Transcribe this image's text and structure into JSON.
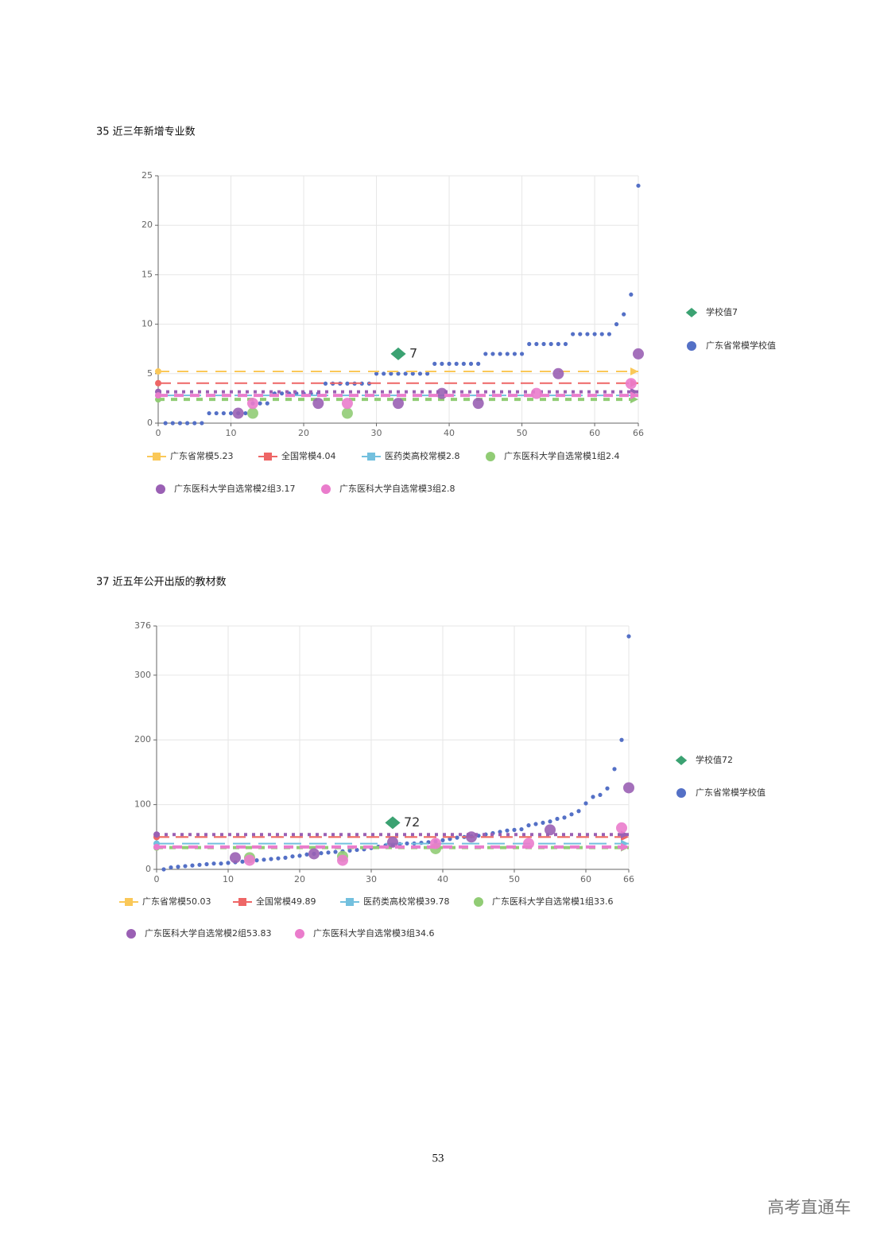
{
  "chart_data": [
    {
      "type": "scatter",
      "title": "35 近三年新增专业数",
      "xlim": [
        0,
        66
      ],
      "xticks": [
        0,
        10,
        20,
        30,
        40,
        50,
        60,
        66
      ],
      "ylim": [
        0,
        25
      ],
      "yticks": [
        0,
        5,
        10,
        15,
        20,
        25
      ],
      "grid": true,
      "series": [
        {
          "name": "学校值7",
          "color": "#3ba272",
          "marker": "diamond",
          "x": [
            33
          ],
          "values": [
            7
          ]
        },
        {
          "name": "广东省常模学校值",
          "color": "#5470c6",
          "marker": "circle",
          "x": [
            1,
            2,
            3,
            4,
            5,
            6,
            7,
            8,
            9,
            10,
            11,
            12,
            13,
            14,
            15,
            16,
            17,
            18,
            19,
            20,
            21,
            22,
            23,
            24,
            25,
            26,
            27,
            28,
            29,
            30,
            31,
            32,
            33,
            34,
            35,
            36,
            37,
            38,
            39,
            40,
            41,
            42,
            43,
            44,
            45,
            46,
            47,
            48,
            49,
            50,
            51,
            52,
            53,
            54,
            55,
            56,
            57,
            58,
            59,
            60,
            61,
            62,
            63,
            64,
            65,
            66
          ],
          "values": [
            0,
            0,
            0,
            0,
            0,
            0,
            1,
            1,
            1,
            1,
            1,
            1,
            2,
            2,
            2,
            3,
            3,
            3,
            3,
            3,
            3,
            3,
            4,
            4,
            4,
            4,
            4,
            4,
            4,
            5,
            5,
            5,
            5,
            5,
            5,
            5,
            5,
            6,
            6,
            6,
            6,
            6,
            6,
            6,
            7,
            7,
            7,
            7,
            7,
            7,
            8,
            8,
            8,
            8,
            8,
            8,
            9,
            9,
            9,
            9,
            9,
            9,
            10,
            11,
            13,
            24
          ]
        },
        {
          "name": "广东省常模5.23",
          "color": "#fac858",
          "value": 5.23
        },
        {
          "name": "全国常模4.04",
          "color": "#ee6666",
          "value": 4.04
        },
        {
          "name": "医药类高校常模2.8",
          "color": "#73c0de",
          "value": 2.8
        },
        {
          "name": "广东医科大学自选常模1组2.4",
          "color": "#91cc75",
          "value": 2.4,
          "x": [
            13,
            26
          ],
          "values": [
            1,
            1
          ]
        },
        {
          "name": "广东医科大学自选常模2组3.17",
          "color": "#9a60b4",
          "value": 3.17,
          "x": [
            11,
            22,
            33,
            39,
            44,
            55,
            66
          ],
          "values": [
            1,
            2,
            2,
            3,
            2,
            5,
            7
          ]
        },
        {
          "name": "广东医科大学自选常模3组2.8",
          "color": "#ea7ccc",
          "value": 2.8,
          "x": [
            13,
            26,
            52,
            65
          ],
          "values": [
            2,
            2,
            3,
            4
          ]
        }
      ]
    },
    {
      "type": "scatter",
      "title": "37 近五年公开出版的教材数",
      "xlim": [
        0,
        66
      ],
      "xticks": [
        0,
        10,
        20,
        30,
        40,
        50,
        60,
        66
      ],
      "ylim": [
        0,
        376
      ],
      "yticks": [
        0,
        100,
        200,
        300,
        376
      ],
      "grid": true,
      "series": [
        {
          "name": "学校值72",
          "color": "#3ba272",
          "marker": "diamond",
          "x": [
            33
          ],
          "values": [
            72
          ]
        },
        {
          "name": "广东省常模学校值",
          "color": "#5470c6",
          "marker": "circle",
          "x": [
            1,
            2,
            3,
            4,
            5,
            6,
            7,
            8,
            9,
            10,
            11,
            12,
            13,
            14,
            15,
            16,
            17,
            18,
            19,
            20,
            21,
            22,
            23,
            24,
            25,
            26,
            27,
            28,
            29,
            30,
            31,
            32,
            33,
            34,
            35,
            36,
            37,
            38,
            39,
            40,
            41,
            42,
            43,
            44,
            45,
            46,
            47,
            48,
            49,
            50,
            51,
            52,
            53,
            54,
            55,
            56,
            57,
            58,
            59,
            60,
            61,
            62,
            63,
            64,
            65,
            66
          ],
          "values": [
            0,
            3,
            4,
            5,
            6,
            7,
            8,
            9,
            9,
            10,
            11,
            12,
            13,
            14,
            15,
            16,
            17,
            18,
            20,
            21,
            23,
            24,
            25,
            26,
            27,
            28,
            29,
            30,
            31,
            33,
            35,
            37,
            38,
            39,
            40,
            40,
            41,
            42,
            43,
            45,
            47,
            49,
            50,
            51,
            52,
            54,
            56,
            58,
            60,
            61,
            62,
            68,
            70,
            72,
            74,
            78,
            80,
            85,
            90,
            102,
            112,
            115,
            125,
            155,
            200,
            360
          ]
        },
        {
          "name": "广东省常模50.03",
          "color": "#fac858",
          "value": 50.03
        },
        {
          "name": "全国常模49.89",
          "color": "#ee6666",
          "value": 49.89
        },
        {
          "name": "医药类高校常模39.78",
          "color": "#73c0de",
          "value": 39.78
        },
        {
          "name": "广东医科大学自选常模1组33.6",
          "color": "#91cc75",
          "value": 33.6,
          "x": [
            13,
            26,
            39
          ],
          "values": [
            18,
            20,
            32
          ]
        },
        {
          "name": "广东医科大学自选常模2组53.83",
          "color": "#9a60b4",
          "value": 53.83,
          "x": [
            11,
            22,
            33,
            44,
            55,
            66
          ],
          "values": [
            18,
            24,
            42,
            50,
            61,
            126
          ]
        },
        {
          "name": "广东医科大学自选常模3组34.6",
          "color": "#ea7ccc",
          "value": 34.6,
          "x": [
            13,
            26,
            39,
            52,
            65
          ],
          "values": [
            14,
            14,
            40,
            40,
            64
          ]
        }
      ]
    }
  ],
  "page_number": 53,
  "watermark": "高考直通车"
}
